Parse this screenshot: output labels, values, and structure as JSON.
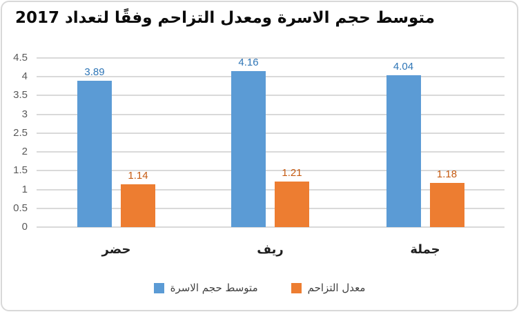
{
  "chart_data": {
    "type": "bar",
    "title": "متوسط حجم الاسرة ومعدل التزاحم وفقًا لتعداد 2017",
    "categories": [
      "حضر",
      "ريف",
      "جملة"
    ],
    "series": [
      {
        "name": "متوسط حجم الاسرة",
        "color": "#5B9BD5",
        "label_color": "#2E75B6",
        "values": [
          3.89,
          4.16,
          4.04
        ],
        "labels": [
          "3.89",
          "4.16",
          "4.04"
        ]
      },
      {
        "name": "معدل التزاحم",
        "color": "#ED7D31",
        "label_color": "#C55A11",
        "values": [
          1.14,
          1.21,
          1.18
        ],
        "labels": [
          "1.14",
          "1.21",
          "1.18"
        ]
      }
    ],
    "xlabel": "",
    "ylabel": "",
    "ylim": [
      0,
      4.5
    ],
    "ytick_step": 0.5,
    "yticks": [
      "4.5",
      "4",
      "3.5",
      "3",
      "2.5",
      "2",
      "1.5",
      "1",
      "0.5",
      "0"
    ],
    "grid": true,
    "legend_position": "bottom",
    "direction": "rtl",
    "colors": {
      "gridline": "#D9D9D9",
      "tick_label": "#595959",
      "category_label": "#1f1f1f",
      "legend_label": "#404040",
      "frame_border": "#D8D8D8",
      "background": "#FFFFFF"
    }
  }
}
